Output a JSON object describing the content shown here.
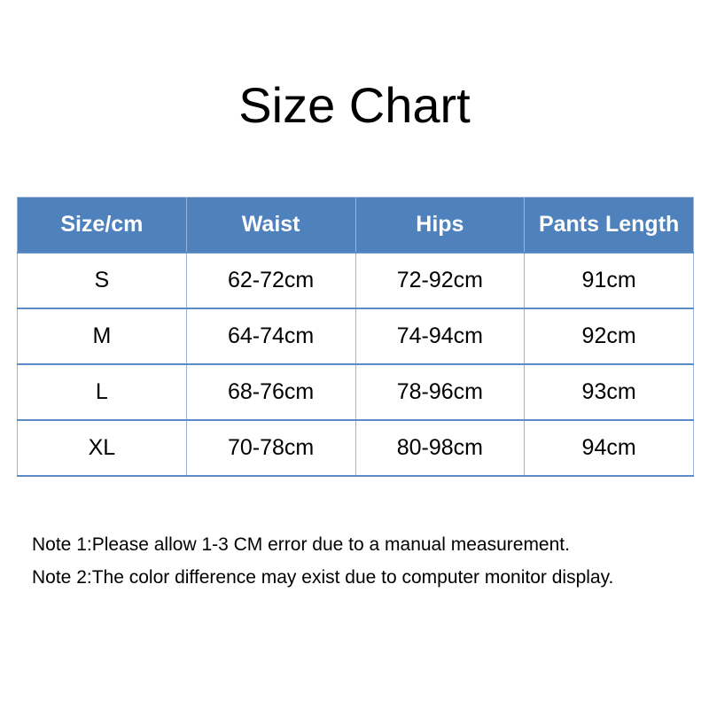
{
  "title": "Size Chart",
  "table": {
    "headers": [
      "Size/cm",
      "Waist",
      "Hips",
      "Pants Length"
    ],
    "rows": [
      [
        "S",
        "62-72cm",
        "72-92cm",
        "91cm"
      ],
      [
        "M",
        "64-74cm",
        "74-94cm",
        "92cm"
      ],
      [
        "L",
        "68-76cm",
        "78-96cm",
        "93cm"
      ],
      [
        "XL",
        "70-78cm",
        "80-98cm",
        "94cm"
      ]
    ]
  },
  "notes": [
    "Note 1:Please allow 1-3 CM error due to a manual measurement.",
    "Note 2:The color difference may exist due to computer monitor display."
  ],
  "colors": {
    "header_bg": "#4f81bd",
    "header_text": "#ffffff"
  }
}
